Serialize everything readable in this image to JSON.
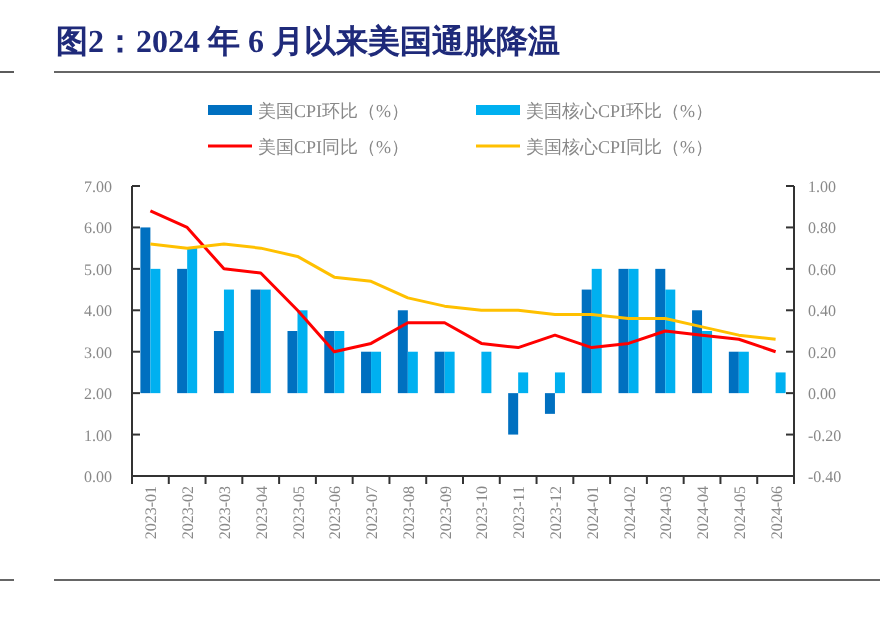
{
  "chart_data": {
    "type": "bar",
    "title": "图2：2024 年 6 月以来美国通胀降温",
    "categories": [
      "2023-01",
      "2023-02",
      "2023-03",
      "2023-04",
      "2023-05",
      "2023-06",
      "2023-07",
      "2023-08",
      "2023-09",
      "2023-10",
      "2023-11",
      "2023-12",
      "2024-01",
      "2024-02",
      "2024-03",
      "2024-04",
      "2024-05",
      "2024-06"
    ],
    "series": [
      {
        "name": "美国CPI环比（%）",
        "axis": "y2",
        "color": "#0070c0",
        "values": [
          0.8,
          0.6,
          0.3,
          0.5,
          0.3,
          0.3,
          0.2,
          0.4,
          0.2,
          0,
          -0.2,
          -0.1,
          0.5,
          0.6,
          0.6,
          0.4,
          0.2,
          0
        ]
      },
      {
        "name": "美国核心CPI环比（%）",
        "axis": "y2",
        "color": "#00b0f0",
        "values": [
          0.6,
          0.7,
          0.5,
          0.5,
          0.4,
          0.3,
          0.2,
          0.2,
          0.2,
          0.2,
          0.1,
          0.1,
          0.6,
          0.6,
          0.5,
          0.3,
          0.2,
          0.1
        ]
      },
      {
        "name": "美国CPI同比（%）",
        "type": "line",
        "color": "#ff0000",
        "values": [
          6.4,
          6.0,
          5.0,
          4.9,
          4.0,
          3.0,
          3.2,
          3.7,
          3.7,
          3.2,
          3.1,
          3.4,
          3.1,
          3.2,
          3.5,
          3.4,
          3.3,
          3.0
        ]
      },
      {
        "name": "美国核心CPI同比（%）",
        "type": "line",
        "color": "#ffc000",
        "values": [
          5.6,
          5.5,
          5.6,
          5.5,
          5.3,
          4.8,
          4.7,
          4.3,
          4.1,
          4.0,
          4.0,
          3.9,
          3.9,
          3.8,
          3.8,
          3.6,
          3.4,
          3.3
        ]
      }
    ],
    "ylim": [
      0,
      7
    ],
    "yticks": [
      {
        "value": 0,
        "label": "0.00"
      },
      {
        "value": 1,
        "label": "1.00"
      },
      {
        "value": 2,
        "label": "2.00"
      },
      {
        "value": 3,
        "label": "3.00"
      },
      {
        "value": 4,
        "label": "4.00"
      },
      {
        "value": 5,
        "label": "5.00"
      },
      {
        "value": 6,
        "label": "6.00"
      },
      {
        "value": 7,
        "label": "7.00"
      }
    ],
    "y2lim": [
      -0.4,
      1.0
    ],
    "y2ticks": [
      {
        "value": -0.4,
        "label": "-0.40"
      },
      {
        "value": -0.2,
        "label": "-0.20"
      },
      {
        "value": 0,
        "label": "0.00"
      },
      {
        "value": 0.2,
        "label": "0.20"
      },
      {
        "value": 0.4,
        "label": "0.40"
      },
      {
        "value": 0.6,
        "label": "0.60"
      },
      {
        "value": 0.8,
        "label": "0.80"
      },
      {
        "value": 1.0,
        "label": "1.00"
      }
    ],
    "legend": "top",
    "grid": false,
    "marker": "none",
    "line_style": "solid"
  }
}
